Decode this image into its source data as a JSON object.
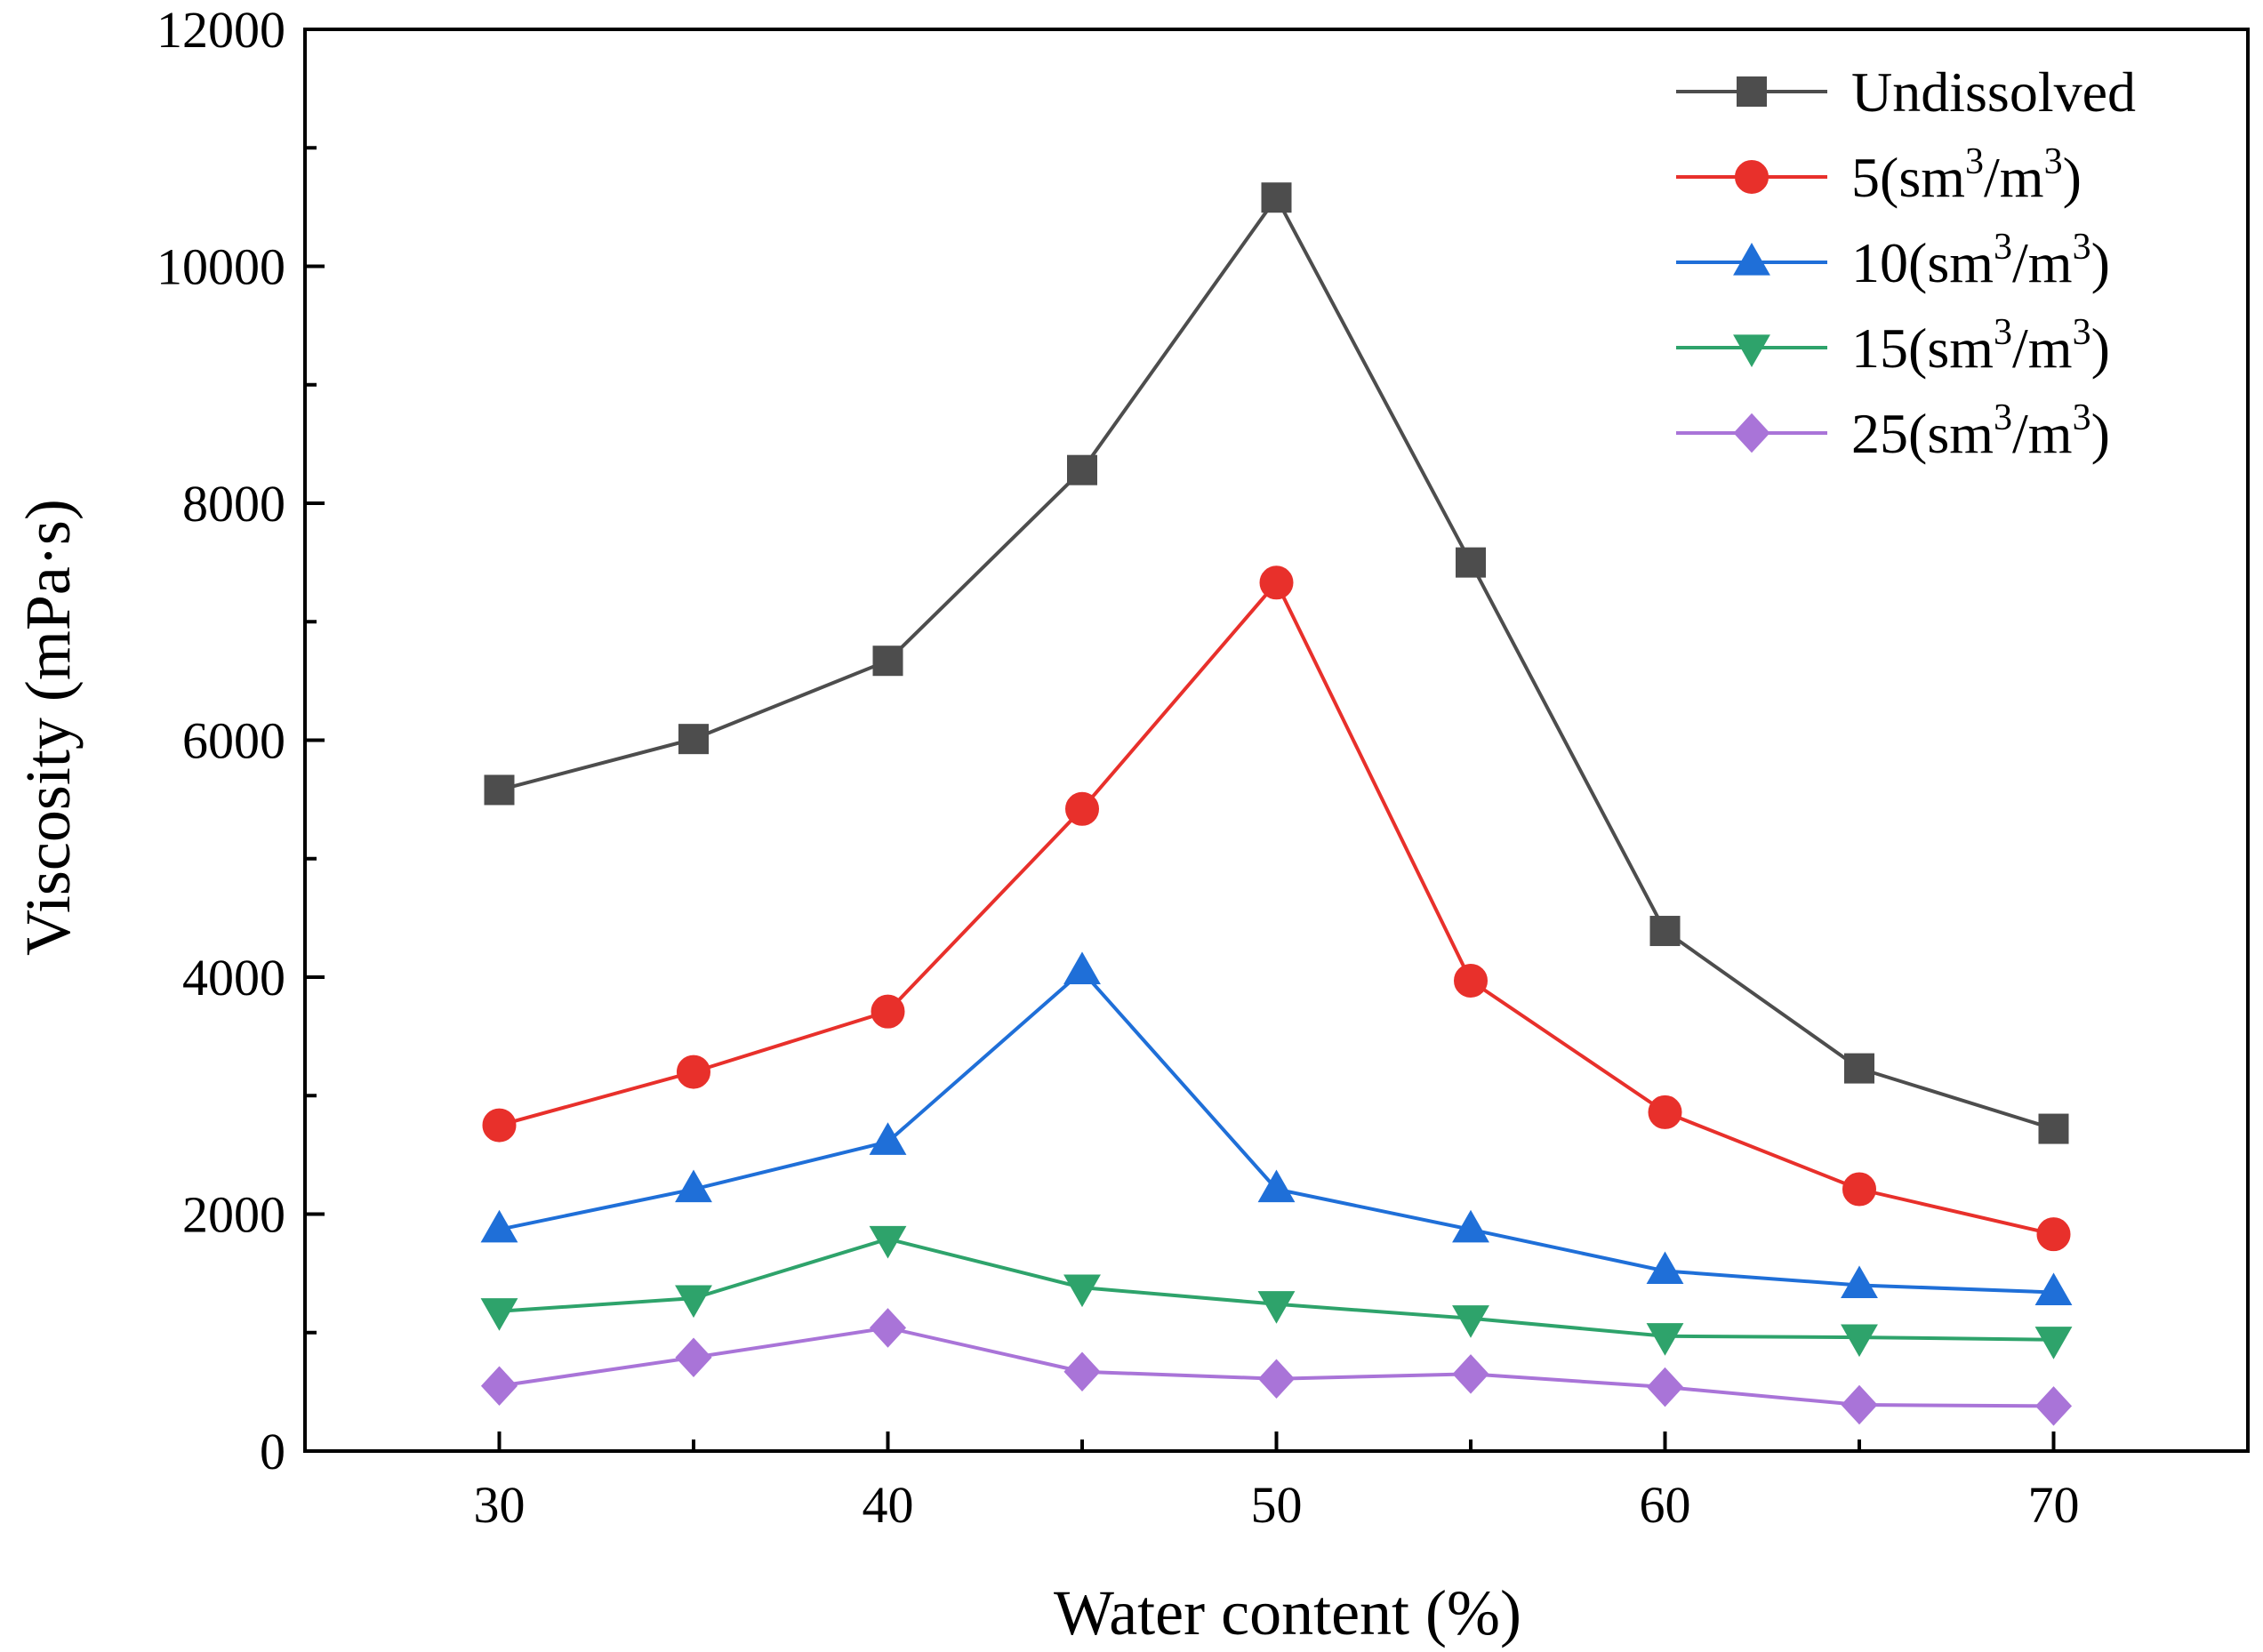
{
  "chart_data": {
    "type": "line",
    "title": "",
    "xlabel": "Water content (%)",
    "ylabel": "Viscosity (mPa·s)",
    "xlim": [
      25,
      75
    ],
    "ylim": [
      0,
      12000
    ],
    "xticks": [
      30,
      40,
      50,
      60,
      70
    ],
    "yticks": [
      0,
      2000,
      4000,
      6000,
      8000,
      10000,
      12000
    ],
    "x": [
      30,
      35,
      40,
      45,
      50,
      55,
      60,
      65,
      70
    ],
    "grid": false,
    "legend_position": "top-right",
    "series": [
      {
        "name": "Undissolved",
        "legend_parts": [
          {
            "t": "Undissolved"
          }
        ],
        "color": "#4d4d4d",
        "marker": "square",
        "values": [
          5580,
          6010,
          6670,
          8280,
          10580,
          7500,
          4390,
          3230,
          2720
        ]
      },
      {
        "name": "5(sm3/m3)",
        "legend_parts": [
          {
            "t": "5(sm"
          },
          {
            "t": "3",
            "sup": true
          },
          {
            "t": "/m"
          },
          {
            "t": "3",
            "sup": true
          },
          {
            "t": ")"
          }
        ],
        "color": "#e8302b",
        "marker": "circle",
        "values": [
          2750,
          3200,
          3710,
          5420,
          7330,
          3970,
          2860,
          2210,
          1830
        ]
      },
      {
        "name": "10(sm3/m3)",
        "legend_parts": [
          {
            "t": "10(sm"
          },
          {
            "t": "3",
            "sup": true
          },
          {
            "t": "/m"
          },
          {
            "t": "3",
            "sup": true
          },
          {
            "t": ")"
          }
        ],
        "color": "#1f6fd8",
        "marker": "triangle-up",
        "values": [
          1870,
          2210,
          2610,
          4050,
          2210,
          1870,
          1520,
          1400,
          1340
        ]
      },
      {
        "name": "15(sm3/m3)",
        "legend_parts": [
          {
            "t": "15(sm"
          },
          {
            "t": "3",
            "sup": true
          },
          {
            "t": "/m"
          },
          {
            "t": "3",
            "sup": true
          },
          {
            "t": ")"
          }
        ],
        "color": "#2ea36b",
        "marker": "triangle-down",
        "values": [
          1180,
          1290,
          1790,
          1380,
          1240,
          1120,
          970,
          960,
          940
        ]
      },
      {
        "name": "25(sm3/m3)",
        "legend_parts": [
          {
            "t": "25(sm"
          },
          {
            "t": "3",
            "sup": true
          },
          {
            "t": "/m"
          },
          {
            "t": "3",
            "sup": true
          },
          {
            "t": ")"
          }
        ],
        "color": "#a974d8",
        "marker": "diamond",
        "values": [
          550,
          790,
          1040,
          670,
          610,
          650,
          540,
          390,
          380
        ]
      }
    ]
  }
}
